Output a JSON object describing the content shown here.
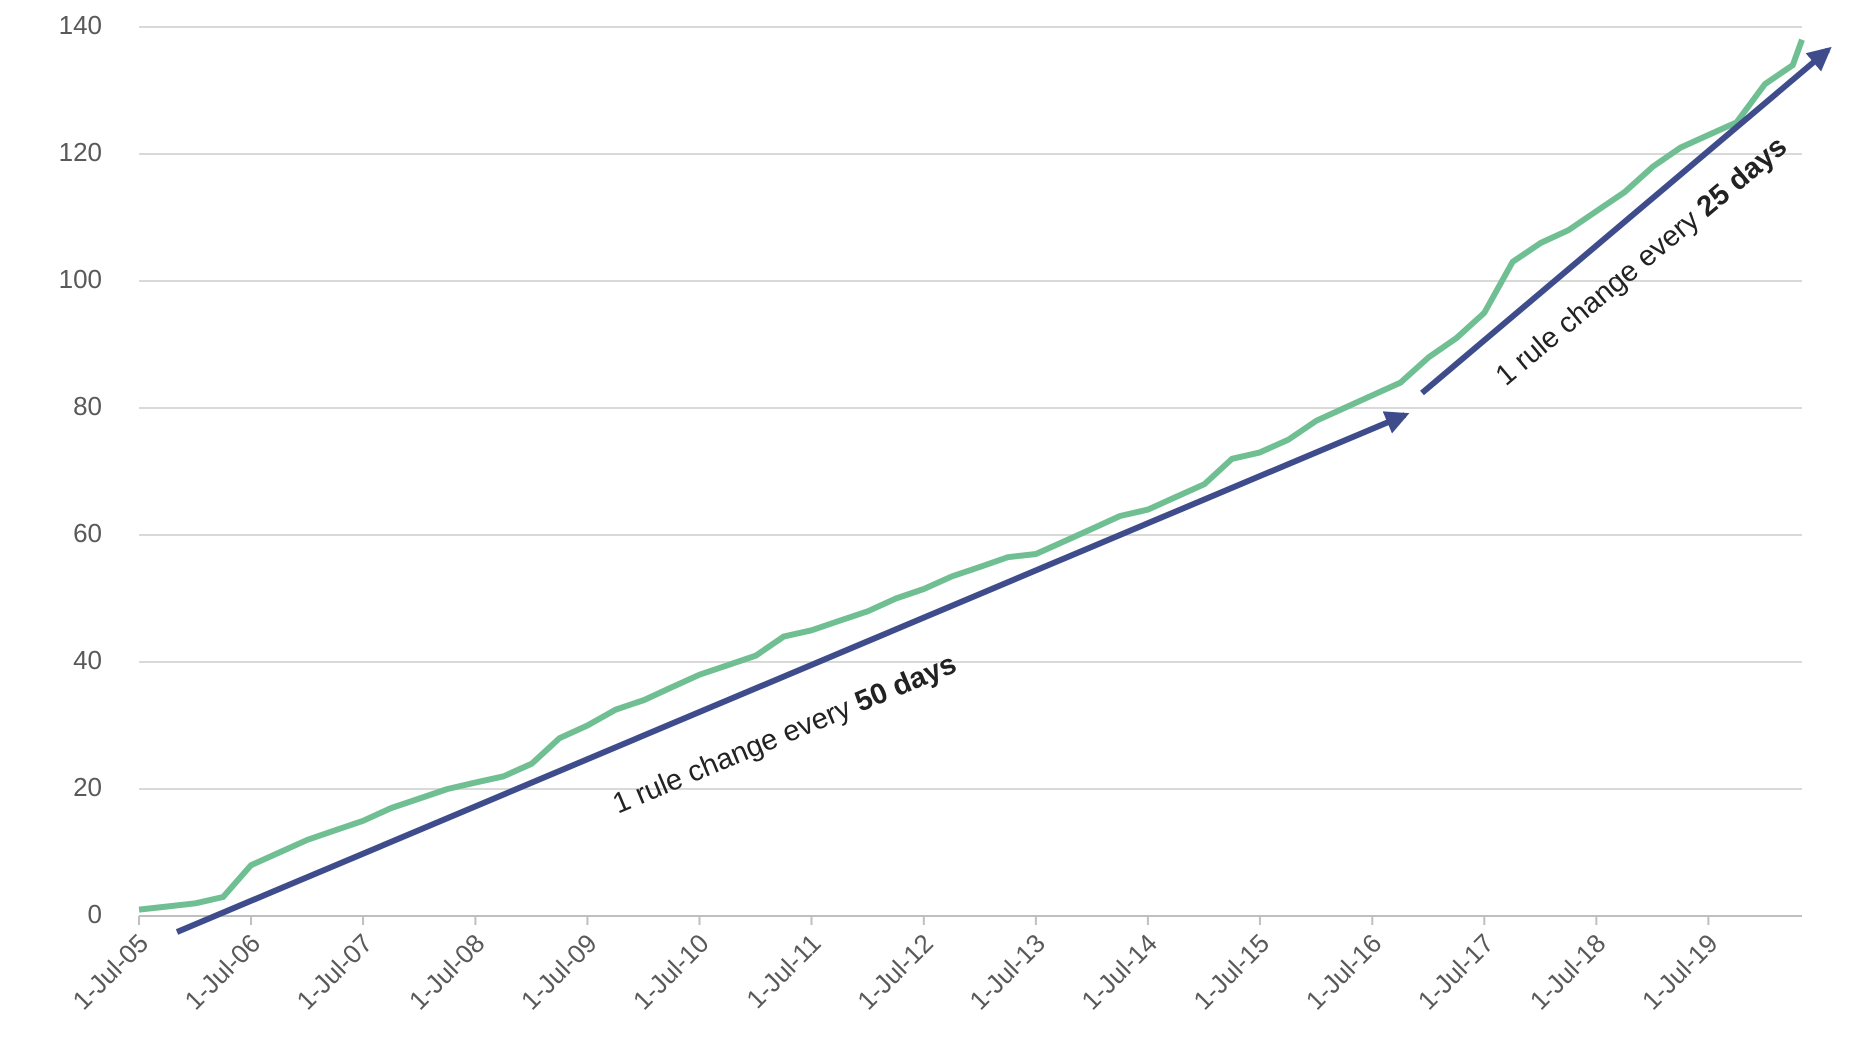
{
  "chart_data": {
    "type": "line",
    "color": "#6fbf93",
    "x": [
      "2005-07-01",
      "2005-10-01",
      "2006-01-01",
      "2006-04-01",
      "2006-07-01",
      "2006-10-01",
      "2007-01-01",
      "2007-04-01",
      "2007-07-01",
      "2007-10-01",
      "2008-01-01",
      "2008-04-01",
      "2008-07-01",
      "2008-10-01",
      "2009-01-01",
      "2009-04-01",
      "2009-07-01",
      "2009-10-01",
      "2010-01-01",
      "2010-04-01",
      "2010-07-01",
      "2010-10-01",
      "2011-01-01",
      "2011-04-01",
      "2011-07-01",
      "2011-10-01",
      "2012-01-01",
      "2012-04-01",
      "2012-07-01",
      "2012-10-01",
      "2013-01-01",
      "2013-04-01",
      "2013-07-01",
      "2013-10-01",
      "2014-01-01",
      "2014-04-01",
      "2014-07-01",
      "2014-10-01",
      "2015-01-01",
      "2015-04-01",
      "2015-07-01",
      "2015-10-01",
      "2016-01-01",
      "2016-04-01",
      "2016-07-01",
      "2016-10-01",
      "2017-01-01",
      "2017-04-01",
      "2017-07-01",
      "2017-10-01",
      "2018-01-01",
      "2018-04-01",
      "2018-07-01",
      "2018-10-01",
      "2019-01-01",
      "2019-04-01",
      "2019-07-01",
      "2019-10-01",
      "2020-01-01",
      "2020-04-01",
      "2020-05-01"
    ],
    "values": [
      1,
      1.5,
      2,
      3,
      8,
      10,
      12,
      13.5,
      15,
      17,
      18.5,
      20,
      21,
      22,
      24,
      28,
      30,
      32.5,
      34,
      36,
      38,
      39.5,
      41,
      44,
      45,
      46.5,
      48,
      50,
      51.5,
      53.5,
      55,
      56.5,
      57,
      59,
      61,
      63,
      64,
      66,
      68,
      72,
      73,
      75,
      78,
      80,
      82,
      84,
      88,
      91,
      95,
      103,
      106,
      108,
      111,
      114,
      118,
      121,
      123,
      125,
      131,
      134,
      138
    ],
    "xlim": [
      "2005-07-01",
      "2020-05-01"
    ],
    "ylim": [
      0,
      140
    ],
    "yticks": [
      0,
      20,
      40,
      60,
      80,
      100,
      120,
      140
    ],
    "xticks": [
      {
        "value": "2005-07-01",
        "label": "1-Jul-05"
      },
      {
        "value": "2006-07-01",
        "label": "1-Jul-06"
      },
      {
        "value": "2007-07-01",
        "label": "1-Jul-07"
      },
      {
        "value": "2008-07-01",
        "label": "1-Jul-08"
      },
      {
        "value": "2009-07-01",
        "label": "1-Jul-09"
      },
      {
        "value": "2010-07-01",
        "label": "1-Jul-10"
      },
      {
        "value": "2011-07-01",
        "label": "1-Jul-11"
      },
      {
        "value": "2012-07-01",
        "label": "1-Jul-12"
      },
      {
        "value": "2013-07-01",
        "label": "1-Jul-13"
      },
      {
        "value": "2014-07-01",
        "label": "1-Jul-14"
      },
      {
        "value": "2015-07-01",
        "label": "1-Jul-15"
      },
      {
        "value": "2016-07-01",
        "label": "1-Jul-16"
      },
      {
        "value": "2017-07-01",
        "label": "1-Jul-17"
      },
      {
        "value": "2018-07-01",
        "label": "1-Jul-18"
      },
      {
        "value": "2019-07-01",
        "label": "1-Jul-19"
      }
    ],
    "grid": true,
    "annotations": [
      {
        "text": "1 rule change every ",
        "bold": "50 days"
      },
      {
        "text": "1 rule change every ",
        "bold": "25 days"
      }
    ]
  }
}
